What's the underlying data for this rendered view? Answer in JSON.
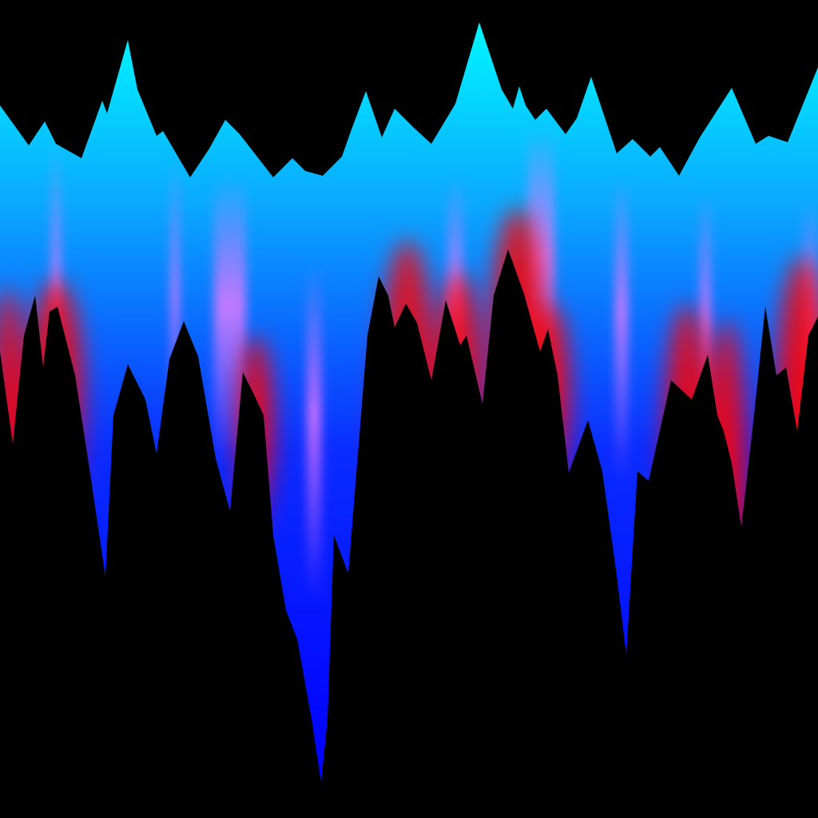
{
  "artwork": {
    "colors": {
      "background": "#000000",
      "cyan_top": "#00f6ff",
      "sky_mid": "#0aa8ff",
      "blue_deep": "#0a2cff",
      "blue_bottom": "#0000ff",
      "pink_streak": "#ff7cff",
      "red_glow": "#ff0000",
      "foreground": "#000000"
    }
  }
}
